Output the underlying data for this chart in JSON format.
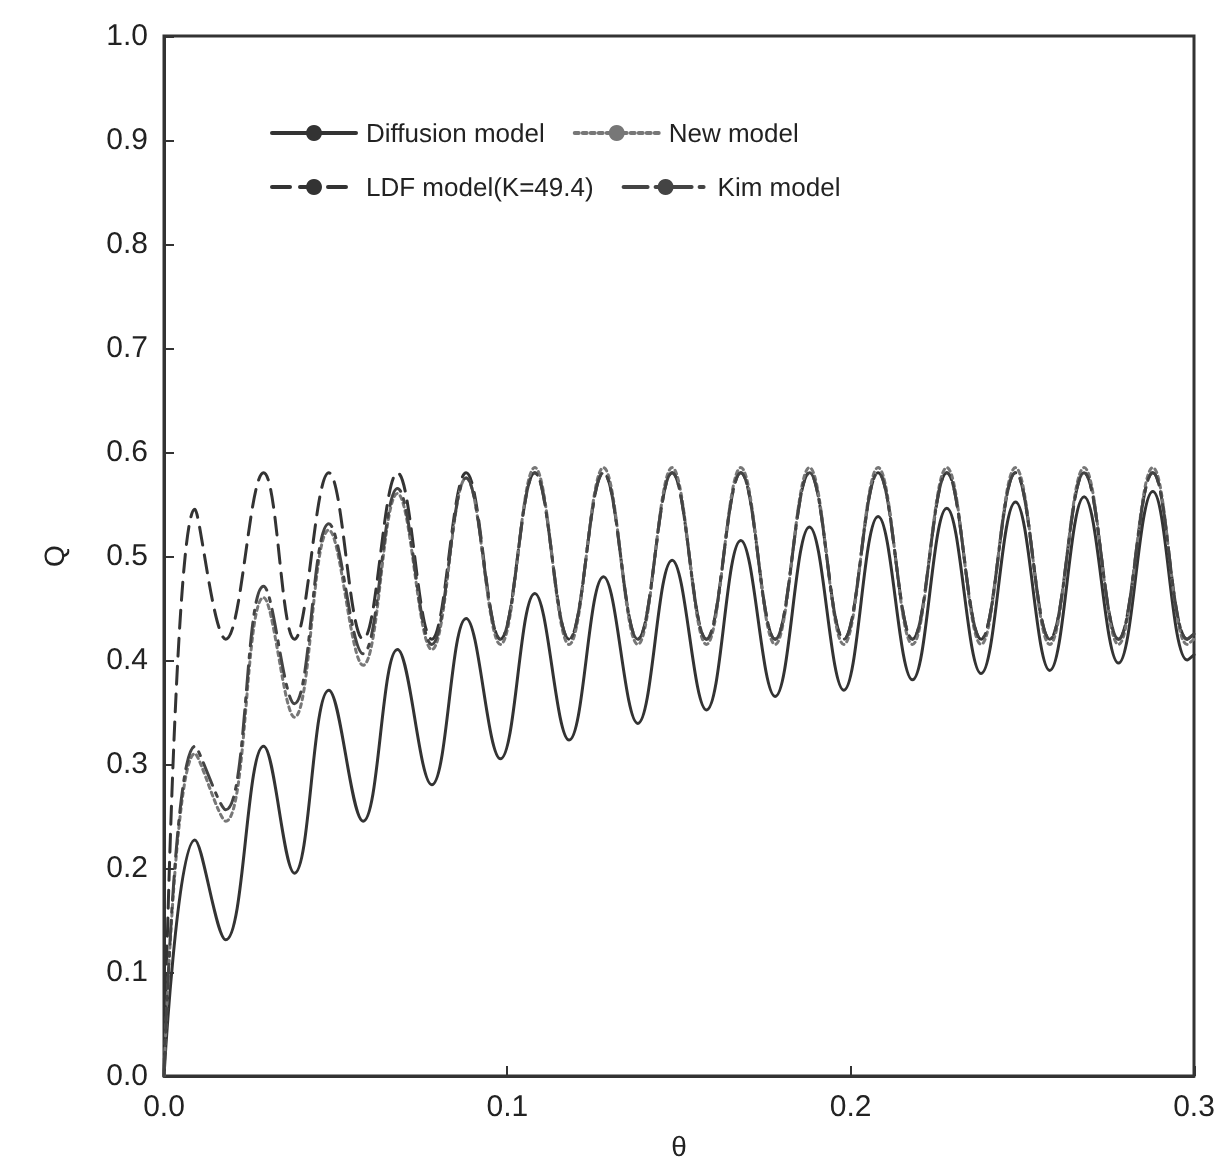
{
  "chart_data": {
    "type": "line",
    "xlabel": "θ",
    "ylabel": "Q",
    "x": [
      0,
      0.009,
      0.018,
      0.029,
      0.038,
      0.048,
      0.058,
      0.068,
      0.078,
      0.088,
      0.098,
      0.108,
      0.118,
      0.128,
      0.138,
      0.148,
      0.158,
      0.168,
      0.178,
      0.188,
      0.198,
      0.208,
      0.218,
      0.228,
      0.238,
      0.248,
      0.258,
      0.268,
      0.278,
      0.288,
      0.298,
      0.3
    ],
    "series": [
      {
        "name": "Diffusion model",
        "color": "#333333",
        "line_style": "solid",
        "values": [
          0,
          0.227,
          0.131,
          0.317,
          0.195,
          0.371,
          0.245,
          0.41,
          0.28,
          0.44,
          0.305,
          0.464,
          0.323,
          0.48,
          0.339,
          0.496,
          0.352,
          0.515,
          0.365,
          0.528,
          0.371,
          0.538,
          0.381,
          0.546,
          0.387,
          0.552,
          0.39,
          0.557,
          0.397,
          0.562,
          0.4,
          0.405
        ]
      },
      {
        "name": "LDF model(K=49.4)",
        "color": "#333333",
        "line_style": "dashed",
        "values": [
          0,
          0.545,
          0.42,
          0.58,
          0.42,
          0.58,
          0.42,
          0.58,
          0.42,
          0.58,
          0.42,
          0.58,
          0.42,
          0.58,
          0.42,
          0.58,
          0.42,
          0.58,
          0.42,
          0.58,
          0.42,
          0.58,
          0.42,
          0.58,
          0.42,
          0.58,
          0.42,
          0.58,
          0.42,
          0.58,
          0.42,
          0.425
        ]
      },
      {
        "name": "New model",
        "color": "#777777",
        "line_style": "dotted",
        "values": [
          0,
          0.31,
          0.245,
          0.46,
          0.345,
          0.525,
          0.395,
          0.56,
          0.41,
          0.575,
          0.415,
          0.585,
          0.415,
          0.585,
          0.415,
          0.585,
          0.415,
          0.585,
          0.415,
          0.585,
          0.415,
          0.585,
          0.415,
          0.585,
          0.415,
          0.585,
          0.415,
          0.585,
          0.415,
          0.585,
          0.415,
          0.42
        ]
      },
      {
        "name": "Kim model",
        "color": "#444444",
        "line_style": "dashdot",
        "values": [
          0,
          0.317,
          0.256,
          0.471,
          0.358,
          0.531,
          0.406,
          0.565,
          0.415,
          0.575,
          0.42,
          0.58,
          0.42,
          0.58,
          0.42,
          0.58,
          0.42,
          0.58,
          0.42,
          0.58,
          0.42,
          0.58,
          0.42,
          0.58,
          0.42,
          0.58,
          0.42,
          0.58,
          0.42,
          0.58,
          0.42,
          0.425
        ]
      }
    ],
    "xlim": [
      0,
      0.3
    ],
    "xticks": [
      {
        "value": 0,
        "label": "0.0"
      },
      0.1,
      0.2,
      0.3
    ],
    "ylim": [
      0,
      1
    ],
    "yticks": [
      {
        "value": 0,
        "label": "0.0"
      },
      0.1,
      0.2,
      0.3,
      0.4,
      0.5,
      0.6,
      0.7,
      0.8,
      0.9,
      {
        "value": 1,
        "label": "1.0"
      }
    ],
    "legend": "top",
    "grid": false,
    "marker": "none"
  }
}
